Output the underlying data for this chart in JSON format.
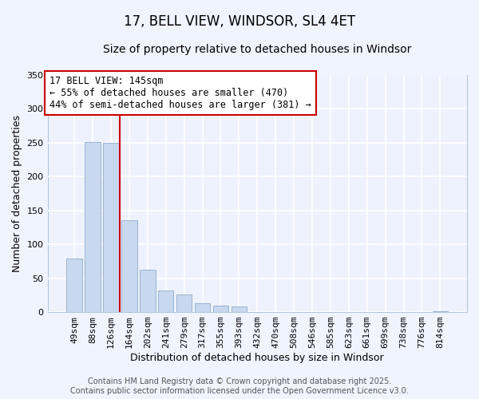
{
  "title": "17, BELL VIEW, WINDSOR, SL4 4ET",
  "subtitle": "Size of property relative to detached houses in Windsor",
  "xlabel": "Distribution of detached houses by size in Windsor",
  "ylabel": "Number of detached properties",
  "bar_labels": [
    "49sqm",
    "88sqm",
    "126sqm",
    "164sqm",
    "202sqm",
    "241sqm",
    "279sqm",
    "317sqm",
    "355sqm",
    "393sqm",
    "432sqm",
    "470sqm",
    "508sqm",
    "546sqm",
    "585sqm",
    "623sqm",
    "661sqm",
    "699sqm",
    "738sqm",
    "776sqm",
    "814sqm"
  ],
  "bar_values": [
    79,
    251,
    250,
    135,
    62,
    32,
    26,
    13,
    10,
    8,
    0,
    0,
    0,
    0,
    0,
    0,
    0,
    0,
    0,
    0,
    1
  ],
  "bar_color": "#c8d8ee",
  "bar_edgecolor": "#9ab4d0",
  "background_color": "#f0f4ff",
  "plot_bg_color": "#eef2fc",
  "grid_color": "#ffffff",
  "ylim": [
    0,
    350
  ],
  "yticks": [
    0,
    50,
    100,
    150,
    200,
    250,
    300,
    350
  ],
  "vline_x_index": 2,
  "vline_color": "#cc0000",
  "annotation_title": "17 BELL VIEW: 145sqm",
  "annotation_line1": "← 55% of detached houses are smaller (470)",
  "annotation_line2": "44% of semi-detached houses are larger (381) →",
  "annotation_box_edgecolor": "#cc0000",
  "footer_line1": "Contains HM Land Registry data © Crown copyright and database right 2025.",
  "footer_line2": "Contains public sector information licensed under the Open Government Licence v3.0.",
  "title_fontsize": 12,
  "subtitle_fontsize": 10,
  "axis_label_fontsize": 9,
  "tick_fontsize": 8,
  "annotation_fontsize": 8.5,
  "footer_fontsize": 7
}
